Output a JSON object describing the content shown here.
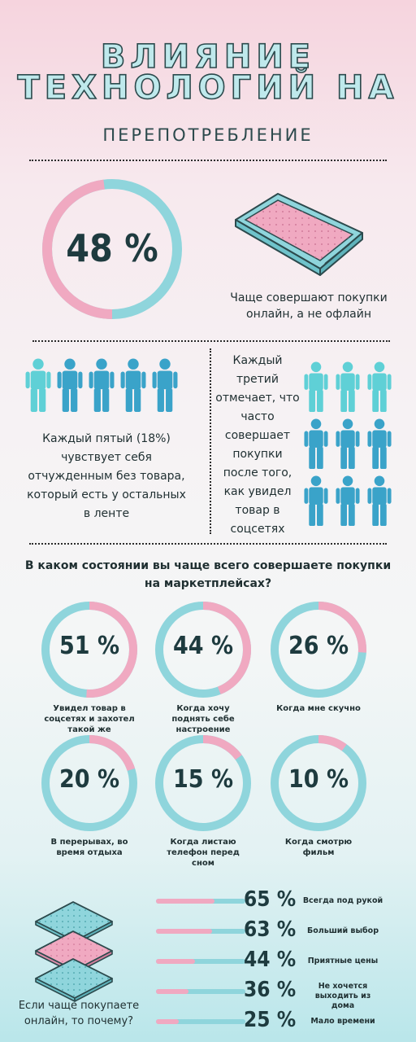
{
  "header": {
    "title_line1": "ВЛИЯНИЕ",
    "title_line2": "ТЕХНОЛОГИЙ НА",
    "subtitle": "ПЕРЕПОТРЕБЛЕНИЕ"
  },
  "stat_online": {
    "value": "48 %",
    "percent": 48,
    "caption": "Чаще совершают покупки онлайн, а не офлайн"
  },
  "stat_fifth": {
    "caption": "Каждый пятый (18%) чувствует себя отчужденным без товара, который есть у остальных в ленте"
  },
  "stat_third": {
    "caption": "Каждый третий отмечает, что часто совершает покупки после того, как увидел товар в соцсетях"
  },
  "question": "В каком состоянии вы чаще всего совершаете покупки на маркетплейсах?",
  "colors": {
    "pink": "#f0a9c1",
    "teal": "#8fd5dc",
    "icon_light": "#5fd0d6",
    "icon_dark": "#3aa3c9"
  },
  "chart_data": [
    {
      "type": "pie",
      "title": "",
      "categories": [
        "Увидел товар в соцсетях и захотел такой же",
        "Когда хочу поднять себе настроение",
        "Когда мне скучно",
        "В перерывах, во время отдыха",
        "Когда листаю телефон перед сном",
        "Когда смотрю фильм"
      ],
      "values": [
        51,
        44,
        26,
        20,
        15,
        10
      ],
      "labels": [
        "51 %",
        "44 %",
        "26 %",
        "20 %",
        "15 %",
        "10 %"
      ]
    },
    {
      "type": "bar",
      "title": "Если чаще покупаете онлайн, то почему?",
      "categories": [
        "Всегда под рукой",
        "Больший выбор",
        "Приятные цены",
        "Не хочется выходить из дома",
        "Мало времени"
      ],
      "values": [
        65,
        63,
        44,
        36,
        25
      ],
      "labels": [
        "65 %",
        "63 %",
        "44 %",
        "36 %",
        "25 %"
      ],
      "ylim": [
        0,
        100
      ]
    }
  ]
}
